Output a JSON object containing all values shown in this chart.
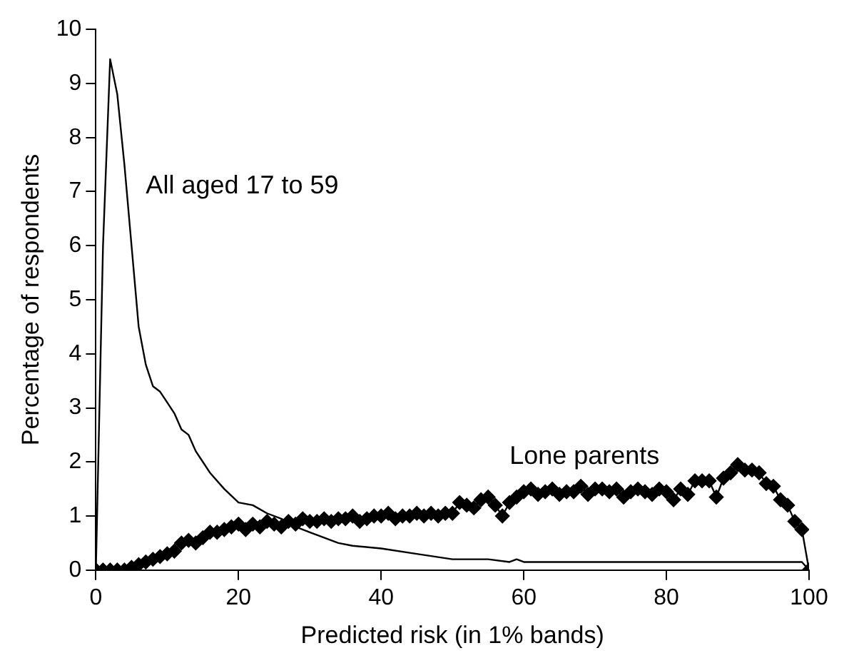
{
  "chart_data": {
    "type": "line",
    "xlabel": "Predicted risk (in 1% bands)",
    "ylabel": "Percentage of respondents",
    "xlim": [
      0,
      100
    ],
    "xticks": [
      0,
      20,
      40,
      60,
      80,
      100
    ],
    "ylim": [
      0,
      10
    ],
    "yticks": [
      0,
      1,
      2,
      3,
      4,
      5,
      6,
      7,
      8,
      9,
      10
    ],
    "grid": false,
    "legend": false,
    "series": [
      {
        "name": "All aged 17 to 59",
        "color": "#000000",
        "marker": "none",
        "x": [
          0,
          1,
          2,
          3,
          4,
          5,
          6,
          7,
          8,
          9,
          10,
          11,
          12,
          13,
          14,
          15,
          16,
          18,
          20,
          22,
          24,
          26,
          28,
          30,
          32,
          34,
          36,
          40,
          45,
          50,
          55,
          58,
          59,
          60,
          61,
          65,
          70,
          80,
          90,
          98,
          99,
          100
        ],
        "values": [
          0,
          6,
          9.45,
          8.8,
          7.5,
          6,
          4.5,
          3.8,
          3.4,
          3.3,
          3.1,
          2.9,
          2.6,
          2.5,
          2.2,
          2.0,
          1.8,
          1.5,
          1.25,
          1.2,
          1.05,
          0.95,
          0.8,
          0.7,
          0.6,
          0.5,
          0.45,
          0.4,
          0.3,
          0.2,
          0.2,
          0.15,
          0.2,
          0.15,
          0.15,
          0.15,
          0.15,
          0.15,
          0.15,
          0.15,
          0.15,
          0
        ]
      },
      {
        "name": "Lone parents",
        "color": "#000000",
        "marker": "diamond",
        "x": [
          0,
          1,
          2,
          3,
          4,
          5,
          6,
          7,
          8,
          9,
          10,
          11,
          12,
          13,
          14,
          15,
          16,
          17,
          18,
          19,
          20,
          21,
          22,
          23,
          24,
          25,
          26,
          27,
          28,
          29,
          30,
          31,
          32,
          33,
          34,
          35,
          36,
          37,
          38,
          39,
          40,
          41,
          42,
          43,
          44,
          45,
          46,
          47,
          48,
          49,
          50,
          51,
          52,
          53,
          54,
          55,
          56,
          57,
          58,
          59,
          60,
          61,
          62,
          63,
          64,
          65,
          66,
          67,
          68,
          69,
          70,
          71,
          72,
          73,
          74,
          75,
          76,
          77,
          78,
          79,
          80,
          81,
          82,
          83,
          84,
          85,
          86,
          87,
          88,
          89,
          90,
          91,
          92,
          93,
          94,
          95,
          96,
          97,
          98,
          99,
          100
        ],
        "values": [
          0,
          0,
          0,
          0,
          0,
          0.05,
          0.1,
          0.15,
          0.2,
          0.25,
          0.3,
          0.35,
          0.5,
          0.55,
          0.5,
          0.6,
          0.7,
          0.7,
          0.75,
          0.8,
          0.85,
          0.75,
          0.85,
          0.8,
          0.9,
          0.85,
          0.8,
          0.9,
          0.85,
          0.95,
          0.9,
          0.9,
          0.95,
          0.9,
          0.95,
          0.95,
          1.0,
          0.9,
          0.95,
          1.0,
          1.0,
          1.05,
          0.95,
          1.0,
          1.0,
          1.05,
          1.0,
          1.05,
          1.0,
          1.05,
          1.05,
          1.25,
          1.2,
          1.15,
          1.3,
          1.35,
          1.2,
          1.0,
          1.25,
          1.35,
          1.45,
          1.5,
          1.4,
          1.45,
          1.5,
          1.4,
          1.45,
          1.45,
          1.55,
          1.4,
          1.5,
          1.5,
          1.45,
          1.5,
          1.35,
          1.45,
          1.5,
          1.45,
          1.4,
          1.5,
          1.45,
          1.3,
          1.5,
          1.4,
          1.65,
          1.65,
          1.65,
          1.35,
          1.7,
          1.8,
          1.95,
          1.85,
          1.85,
          1.8,
          1.6,
          1.55,
          1.3,
          1.2,
          0.9,
          0.75,
          0
        ]
      }
    ]
  }
}
